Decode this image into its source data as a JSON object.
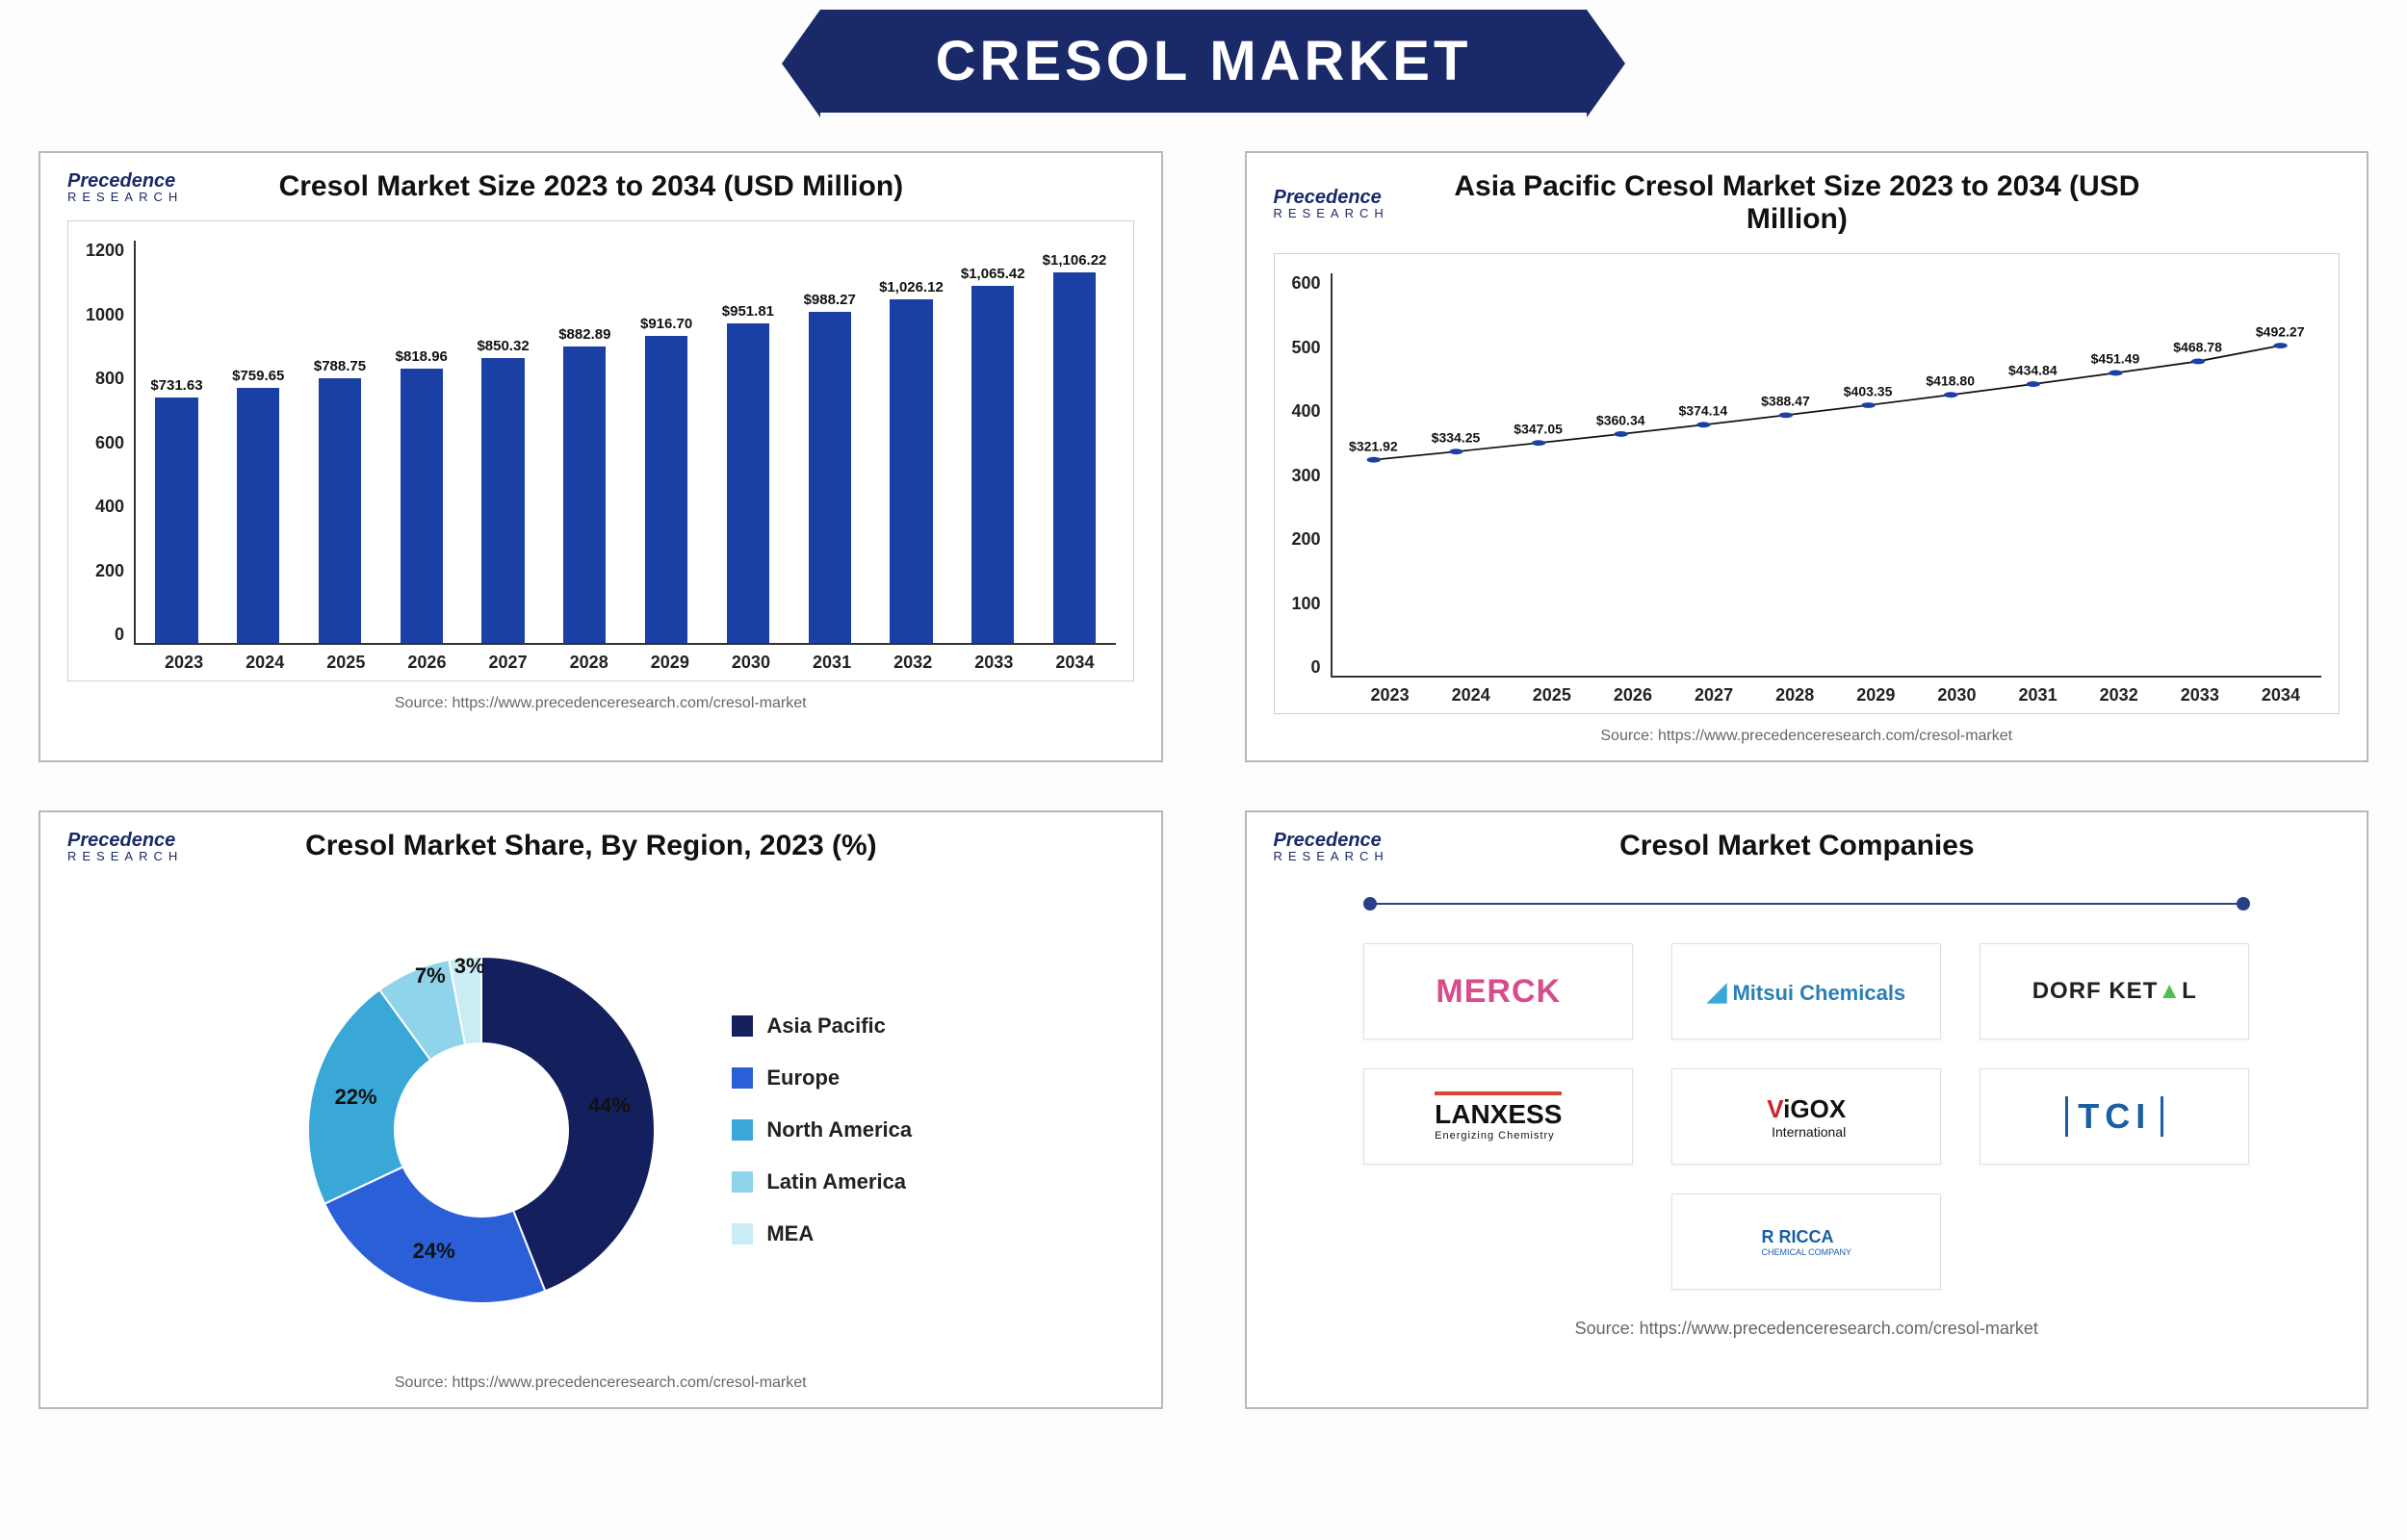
{
  "header": {
    "title": "CRESOL MARKET"
  },
  "logo": {
    "brand": "Precedence",
    "sub": "RESEARCH"
  },
  "bar_chart": {
    "type": "bar",
    "title": "Cresol Market Size 2023 to 2034 (USD Million)",
    "source": "Source: https://www.precedenceresearch.com/cresol-market",
    "categories": [
      "2023",
      "2024",
      "2025",
      "2026",
      "2027",
      "2028",
      "2029",
      "2030",
      "2031",
      "2032",
      "2033",
      "2034"
    ],
    "values": [
      731.63,
      759.65,
      788.75,
      818.96,
      850.32,
      882.89,
      916.7,
      951.81,
      988.27,
      1026.12,
      1065.42,
      1106.22
    ],
    "value_labels": [
      "$731.63",
      "$759.65",
      "$788.75",
      "$818.96",
      "$850.32",
      "$882.89",
      "$916.70",
      "$951.81",
      "$988.27",
      "$1,026.12",
      "$1,065.42",
      "$1,106.22"
    ],
    "yticks": [
      0,
      200,
      400,
      600,
      800,
      1000,
      1200
    ],
    "ylim": [
      0,
      1200
    ],
    "bar_color": "#1a3fa5",
    "axis_color": "#333333",
    "label_fontsize": 18,
    "value_fontsize": 15,
    "background_color": "#ffffff"
  },
  "line_chart": {
    "type": "line",
    "title": "Asia Pacific Cresol Market Size 2023 to 2034 (USD Million)",
    "source": "Source: https://www.precedenceresearch.com/cresol-market",
    "categories": [
      "2023",
      "2024",
      "2025",
      "2026",
      "2027",
      "2028",
      "2029",
      "2030",
      "2031",
      "2032",
      "2033",
      "2034"
    ],
    "values": [
      321.92,
      334.25,
      347.05,
      360.34,
      374.14,
      388.47,
      403.35,
      418.8,
      434.84,
      451.49,
      468.78,
      492.27
    ],
    "value_labels": [
      "$321.92",
      "$334.25",
      "$347.05",
      "$360.34",
      "$374.14",
      "$388.47",
      "$403.35",
      "$418.80",
      "$434.84",
      "$451.49",
      "$468.78",
      "$492.27"
    ],
    "yticks": [
      0,
      100,
      200,
      300,
      400,
      500,
      600
    ],
    "ylim": [
      0,
      600
    ],
    "line_color": "#111111",
    "marker_color": "#1a3fa5",
    "marker_size": 5,
    "line_width": 2,
    "axis_color": "#333333",
    "label_fontsize": 18,
    "value_fontsize": 14,
    "background_color": "#ffffff"
  },
  "donut_chart": {
    "type": "pie",
    "title": "Cresol Market Share, By Region, 2023 (%)",
    "source": "Source: https://www.precedenceresearch.com/cresol-market",
    "segments": [
      {
        "label": "Asia Pacific",
        "value": 44,
        "color": "#14205e",
        "text": "44%"
      },
      {
        "label": "Europe",
        "value": 24,
        "color": "#2a5fd8",
        "text": "24%"
      },
      {
        "label": "North America",
        "value": 22,
        "color": "#3aa8d6",
        "text": "22%"
      },
      {
        "label": "Latin America",
        "value": 7,
        "color": "#8fd4ea",
        "text": "7%"
      },
      {
        "label": "MEA",
        "value": 3,
        "color": "#c9ecf5",
        "text": "3%"
      }
    ],
    "inner_radius_ratio": 0.5,
    "label_fontsize": 22,
    "background_color": "#ffffff"
  },
  "companies": {
    "title": "Cresol Market Companies",
    "source": "Source: https://www.precedenceresearch.com/cresol-market",
    "items": [
      {
        "name": "MERCK"
      },
      {
        "name": "Mitsui Chemicals"
      },
      {
        "name": "DORF KETAL"
      },
      {
        "name": "LANXESS",
        "tagline": "Energizing Chemistry"
      },
      {
        "name": "ViGOX",
        "tagline": "International"
      },
      {
        "name": "TCI"
      },
      {
        "name": "RICCA",
        "tagline": "CHEMICAL COMPANY"
      }
    ]
  }
}
